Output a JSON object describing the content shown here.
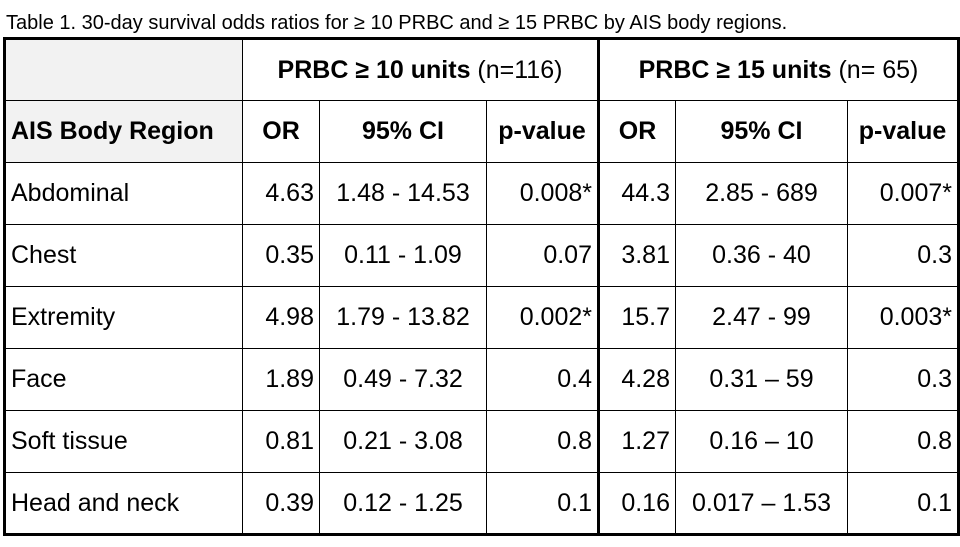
{
  "caption": "Table 1. 30-day survival odds ratios for ≥ 10 PRBC and ≥ 15 PRBC by AIS body regions.",
  "groups": [
    {
      "label": "PRBC ≥ 10 units",
      "n": "(n=116)"
    },
    {
      "label": "PRBC ≥ 15 units",
      "n": "(n= 65)"
    }
  ],
  "columns": [
    "AIS Body Region",
    "OR",
    "95% CI",
    "p-value",
    "OR",
    "95% CI",
    "p-value"
  ],
  "rows": [
    {
      "region": "Abdominal",
      "or10": "4.63",
      "ci10": "1.48 - 14.53",
      "p10": "0.008*",
      "or15": "44.3",
      "ci15": "2.85 - 689",
      "p15": "0.007*"
    },
    {
      "region": "Chest",
      "or10": "0.35",
      "ci10": "0.11 - 1.09",
      "p10": "0.07",
      "or15": "3.81",
      "ci15": "0.36 - 40",
      "p15": "0.3"
    },
    {
      "region": "Extremity",
      "or10": "4.98",
      "ci10": "1.79 - 13.82",
      "p10": "0.002*",
      "or15": "15.7",
      "ci15": "2.47 - 99",
      "p15": "0.003*"
    },
    {
      "region": "Face",
      "or10": "1.89",
      "ci10": "0.49 - 7.32",
      "p10": "0.4",
      "or15": "4.28",
      "ci15": "0.31 – 59",
      "p15": "0.3"
    },
    {
      "region": "Soft tissue",
      "or10": "0.81",
      "ci10": "0.21 - 3.08",
      "p10": "0.8",
      "or15": "1.27",
      "ci15": "0.16 – 10",
      "p15": "0.8"
    },
    {
      "region": "Head and neck",
      "or10": "0.39",
      "ci10": "0.12 - 1.25",
      "p10": "0.1",
      "or15": "0.16",
      "ci15": "0.017 – 1.53",
      "p15": "0.1"
    }
  ]
}
